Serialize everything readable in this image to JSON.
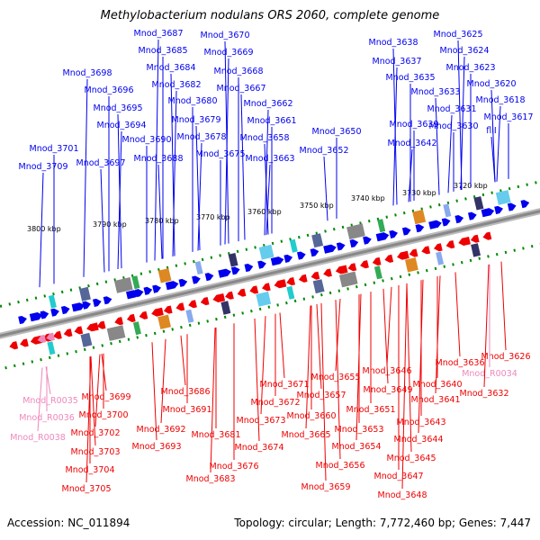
{
  "title": "Methylobacterium nodulans ORS 2060, complete genome",
  "footer": {
    "accession": "Accession: NC_011894",
    "summary": "Topology: circular; Length: 7,772,460 bp; Genes: 7,447"
  },
  "colors": {
    "forward": "#0000ee",
    "reverse": "#ee0000",
    "rna": "#ee88bb",
    "backbone": "#888888",
    "ticks": "#008800"
  },
  "scale_labels": [
    "3800 kbp",
    "3790 kbp",
    "3780 kbp",
    "3770 kbp",
    "3760 kbp",
    "3750 kbp",
    "3740 kbp",
    "3730 kbp",
    "3720 kbp"
  ],
  "top_labels": [
    "Mnod_3709",
    "Mnod_3701",
    "Mnod_3697",
    "Mnod_3698",
    "Mnod_3696",
    "Mnod_3695",
    "Mnod_3694",
    "Mnod_3690",
    "Mnod_3688",
    "Mnod_3687",
    "Mnod_3685",
    "Mnod_3684",
    "Mnod_3682",
    "Mnod_3680",
    "Mnod_3679",
    "Mnod_3678",
    "Mnod_3675",
    "Mnod_3670",
    "Mnod_3669",
    "Mnod_3668",
    "Mnod_3667",
    "Mnod_3662",
    "Mnod_3661",
    "Mnod_3658",
    "Mnod_3663",
    "Mnod_3650",
    "Mnod_3652",
    "Mnod_3642",
    "Mnod_3639",
    "Mnod_3638",
    "Mnod_3637",
    "Mnod_3635",
    "Mnod_3633",
    "Mnod_3631",
    "Mnod_3630",
    "Mnod_3625",
    "Mnod_3624",
    "Mnod_3623",
    "Mnod_3620",
    "Mnod_3618",
    "Mnod_3617",
    "fliI"
  ],
  "bottom_labels": [
    "Mnod_R0035",
    "Mnod_R0036",
    "Mnod_R0038",
    "Mnod_3699",
    "Mnod_3700",
    "Mnod_3702",
    "Mnod_3703",
    "Mnod_3704",
    "Mnod_3705",
    "Mnod_3686",
    "Mnod_3691",
    "Mnod_3692",
    "Mnod_3693",
    "Mnod_3681",
    "Mnod_3683",
    "Mnod_3671",
    "Mnod_3672",
    "Mnod_3673",
    "Mnod_3674",
    "Mnod_3676",
    "Mnod_3655",
    "Mnod_3657",
    "Mnod_3660",
    "Mnod_3665",
    "Mnod_3659",
    "Mnod_3653",
    "Mnod_3654",
    "Mnod_3656",
    "Mnod_3651",
    "Mnod_3646",
    "Mnod_3649",
    "Mnod_3643",
    "Mnod_3644",
    "Mnod_3645",
    "Mnod_3647",
    "Mnod_3648",
    "Mnod_3636",
    "Mnod_3640",
    "Mnod_3641",
    "Mnod_3626",
    "Mnod_R0034",
    "Mnod_3632"
  ]
}
